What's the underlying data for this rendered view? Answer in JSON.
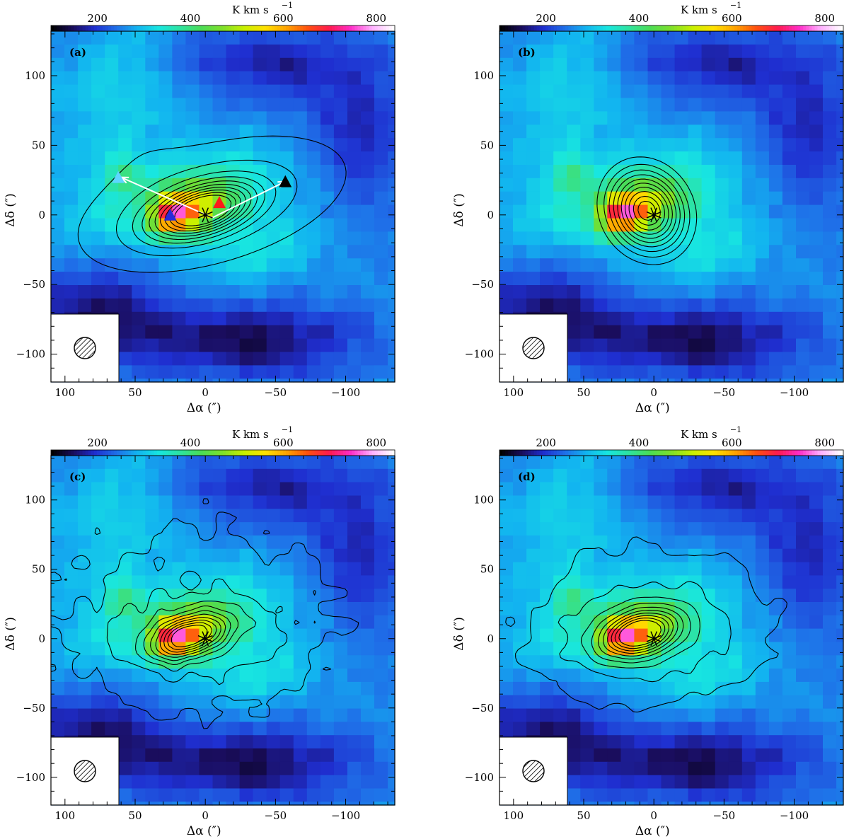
{
  "figure": {
    "colorbar_unit": "K km s",
    "colorbar_unit_exp": "−1",
    "x_axis_label": "Δα (″)",
    "y_axis_label": "Δδ (″)",
    "colormap_stops": [
      "#000000",
      "#1a0d5e",
      "#1f2fd0",
      "#1f6fe8",
      "#12b4f0",
      "#18e6e0",
      "#2ee3a0",
      "#4bdc55",
      "#7fe02a",
      "#c8f000",
      "#ffe000",
      "#ffa200",
      "#ff4f10",
      "#ff1a50",
      "#ff2dc8",
      "#ffb0ff",
      "#ffffff"
    ]
  },
  "chart_data": [
    {
      "type": "heatmap",
      "panel": "(a)",
      "title": "",
      "colorbar": {
        "ticks": [
          200,
          400,
          600,
          800
        ],
        "range": [
          100,
          840
        ],
        "unit": "K km s−1"
      },
      "xlim": [
        110,
        -135
      ],
      "ylim": [
        -120,
        132
      ],
      "xticks": [
        100,
        50,
        0,
        -50,
        -100
      ],
      "yticks": [
        100,
        50,
        0,
        -50,
        -100
      ],
      "xlabel": "Δα (″)",
      "ylabel": "Δδ (″)",
      "peak_offset": [
        -2,
        3
      ],
      "triangles": [
        {
          "color": "#5fd6ff",
          "x": 62,
          "y": 27
        },
        {
          "color": "#2a2ad8",
          "x": 25,
          "y": 0
        },
        {
          "color": "#ff1a1a",
          "x": -10,
          "y": 9
        },
        {
          "color": "#000000",
          "x": -57,
          "y": 24
        }
      ],
      "arrows": [
        {
          "from": [
            -5,
            -2
          ],
          "to": [
            60,
            27
          ]
        },
        {
          "from": [
            -5,
            -2
          ],
          "to": [
            -57,
            24
          ]
        }
      ],
      "marker": {
        "symbol": "star",
        "x": 0,
        "y": 0
      }
    },
    {
      "type": "heatmap",
      "panel": "(b)",
      "title": "",
      "colorbar": {
        "ticks": [
          200,
          400,
          600,
          800
        ],
        "range": [
          100,
          840
        ],
        "unit": "K km s−1"
      },
      "xlim": [
        110,
        -135
      ],
      "ylim": [
        -120,
        132
      ],
      "xticks": [
        100,
        50,
        0,
        -50,
        -100
      ],
      "yticks": [
        100,
        50,
        0,
        -50,
        -100
      ],
      "xlabel": "Δα (″)",
      "ylabel": "Δδ (″)",
      "marker": {
        "symbol": "star",
        "x": 0,
        "y": 0
      }
    },
    {
      "type": "heatmap",
      "panel": "(c)",
      "title": "",
      "colorbar": {
        "ticks": [
          200,
          400,
          600,
          800
        ],
        "range": [
          100,
          840
        ],
        "unit": "K km s−1"
      },
      "xlim": [
        110,
        -135
      ],
      "ylim": [
        -120,
        132
      ],
      "xticks": [
        100,
        50,
        0,
        -50,
        -100
      ],
      "yticks": [
        100,
        50,
        0,
        -50,
        -100
      ],
      "xlabel": "Δα (″)",
      "ylabel": "Δδ (″)",
      "marker": {
        "symbol": "star",
        "x": 0,
        "y": 0
      }
    },
    {
      "type": "heatmap",
      "panel": "(d)",
      "title": "",
      "colorbar": {
        "ticks": [
          200,
          400,
          600,
          800
        ],
        "range": [
          100,
          840
        ],
        "unit": "K km s−1"
      },
      "xlim": [
        110,
        -135
      ],
      "ylim": [
        -120,
        132
      ],
      "xticks": [
        100,
        50,
        0,
        -50,
        -100
      ],
      "yticks": [
        100,
        50,
        0,
        -50,
        -100
      ],
      "xlabel": "Δα (″)",
      "ylabel": "Δδ (″)",
      "marker": {
        "symbol": "star",
        "x": 0,
        "y": 0
      }
    }
  ]
}
